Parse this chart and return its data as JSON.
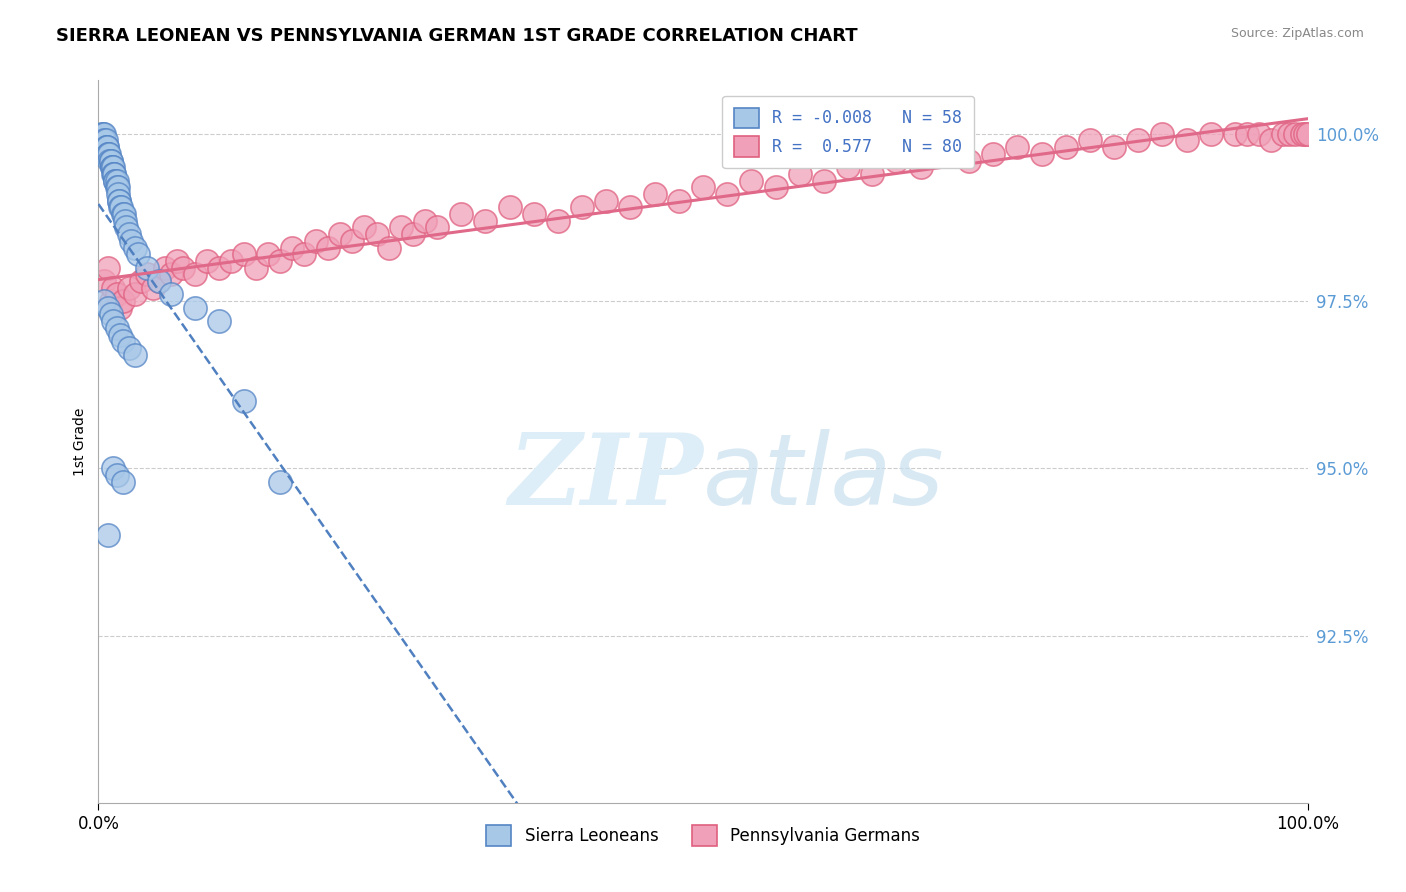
{
  "title": "SIERRA LEONEAN VS PENNSYLVANIA GERMAN 1ST GRADE CORRELATION CHART",
  "source": "Source: ZipAtlas.com",
  "ylabel": "1st Grade",
  "legend_label_blue": "Sierra Leoneans",
  "legend_label_pink": "Pennsylvania Germans",
  "R_blue": -0.008,
  "N_blue": 58,
  "R_pink": 0.577,
  "N_pink": 80,
  "xlim": [
    0.0,
    1.0
  ],
  "ylim": [
    0.9,
    1.008
  ],
  "yticks": [
    0.925,
    0.95,
    0.975,
    1.0
  ],
  "ytick_labels": [
    "92.5%",
    "95.0%",
    "97.5%",
    "100.0%"
  ],
  "color_blue": "#A8C8E8",
  "color_pink": "#F0A0B8",
  "edge_blue": "#5585C5",
  "edge_pink": "#E06080",
  "line_blue": "#5080C0",
  "line_pink": "#E06888",
  "watermark_zip": "ZIP",
  "watermark_atlas": "atlas",
  "blue_x": [
    0.003,
    0.004,
    0.005,
    0.005,
    0.006,
    0.006,
    0.007,
    0.007,
    0.008,
    0.008,
    0.009,
    0.009,
    0.01,
    0.01,
    0.011,
    0.011,
    0.012,
    0.012,
    0.013,
    0.013,
    0.014,
    0.014,
    0.015,
    0.015,
    0.016,
    0.016,
    0.017,
    0.017,
    0.018,
    0.019,
    0.02,
    0.021,
    0.022,
    0.023,
    0.025,
    0.027,
    0.03,
    0.033,
    0.04,
    0.05,
    0.06,
    0.08,
    0.1,
    0.12,
    0.15,
    0.005,
    0.008,
    0.01,
    0.012,
    0.015,
    0.018,
    0.02,
    0.025,
    0.03,
    0.012,
    0.015,
    0.02,
    0.008
  ],
  "blue_y": [
    1.0,
    1.0,
    1.0,
    0.999,
    0.999,
    0.998,
    0.998,
    0.998,
    0.997,
    0.997,
    0.997,
    0.996,
    0.996,
    0.996,
    0.995,
    0.995,
    0.995,
    0.994,
    0.994,
    0.994,
    0.993,
    0.993,
    0.993,
    0.992,
    0.992,
    0.991,
    0.99,
    0.99,
    0.989,
    0.989,
    0.988,
    0.988,
    0.987,
    0.986,
    0.985,
    0.984,
    0.983,
    0.982,
    0.98,
    0.978,
    0.976,
    0.974,
    0.972,
    0.96,
    0.948,
    0.975,
    0.974,
    0.973,
    0.972,
    0.971,
    0.97,
    0.969,
    0.968,
    0.967,
    0.95,
    0.949,
    0.948,
    0.94
  ],
  "pink_x": [
    0.005,
    0.008,
    0.01,
    0.012,
    0.015,
    0.018,
    0.02,
    0.025,
    0.03,
    0.035,
    0.04,
    0.045,
    0.05,
    0.055,
    0.06,
    0.065,
    0.07,
    0.08,
    0.09,
    0.1,
    0.11,
    0.12,
    0.13,
    0.14,
    0.15,
    0.16,
    0.17,
    0.18,
    0.19,
    0.2,
    0.21,
    0.22,
    0.23,
    0.24,
    0.25,
    0.26,
    0.27,
    0.28,
    0.3,
    0.32,
    0.34,
    0.36,
    0.38,
    0.4,
    0.42,
    0.44,
    0.46,
    0.48,
    0.5,
    0.52,
    0.54,
    0.56,
    0.58,
    0.6,
    0.62,
    0.64,
    0.66,
    0.68,
    0.7,
    0.72,
    0.74,
    0.76,
    0.78,
    0.8,
    0.82,
    0.84,
    0.86,
    0.88,
    0.9,
    0.92,
    0.94,
    0.95,
    0.96,
    0.97,
    0.98,
    0.985,
    0.99,
    0.995,
    0.998,
    1.0
  ],
  "pink_y": [
    0.978,
    0.98,
    0.975,
    0.977,
    0.976,
    0.974,
    0.975,
    0.977,
    0.976,
    0.978,
    0.979,
    0.977,
    0.978,
    0.98,
    0.979,
    0.981,
    0.98,
    0.979,
    0.981,
    0.98,
    0.981,
    0.982,
    0.98,
    0.982,
    0.981,
    0.983,
    0.982,
    0.984,
    0.983,
    0.985,
    0.984,
    0.986,
    0.985,
    0.983,
    0.986,
    0.985,
    0.987,
    0.986,
    0.988,
    0.987,
    0.989,
    0.988,
    0.987,
    0.989,
    0.99,
    0.989,
    0.991,
    0.99,
    0.992,
    0.991,
    0.993,
    0.992,
    0.994,
    0.993,
    0.995,
    0.994,
    0.996,
    0.995,
    0.997,
    0.996,
    0.997,
    0.998,
    0.997,
    0.998,
    0.999,
    0.998,
    0.999,
    1.0,
    0.999,
    1.0,
    1.0,
    1.0,
    1.0,
    0.999,
    1.0,
    1.0,
    1.0,
    1.0,
    1.0,
    1.0
  ]
}
